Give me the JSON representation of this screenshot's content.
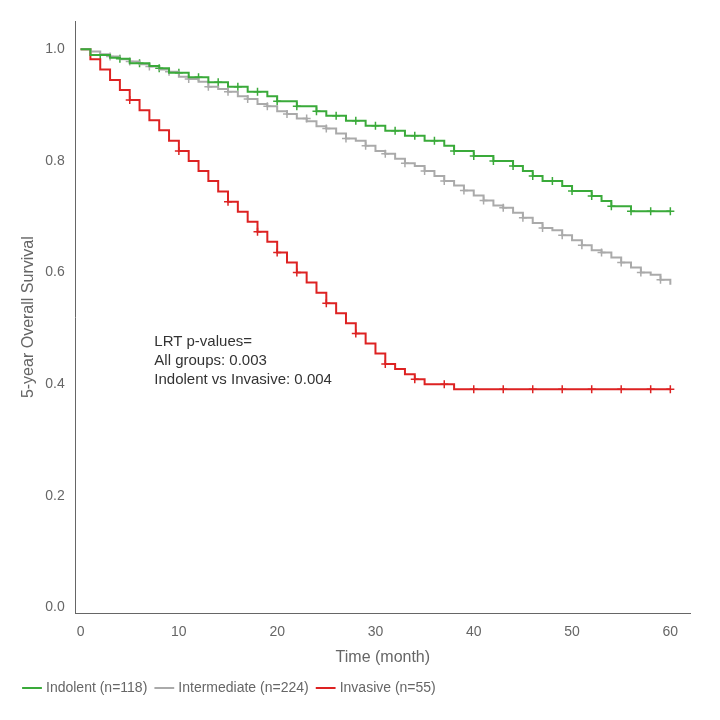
{
  "chart_data": {
    "type": "line",
    "line_style": "step",
    "xlabel": "Time (month)",
    "ylabel": "5-year Overall Survival",
    "xlim": [
      -0.5,
      62
    ],
    "ylim": [
      -0.01,
      1.05
    ],
    "xticks": [
      0,
      10,
      20,
      30,
      40,
      50,
      60
    ],
    "yticks": [
      {
        "value": 0,
        "label": "0.0"
      },
      0.2,
      0.4,
      0.6,
      0.8,
      {
        "value": 1,
        "label": "1.0"
      }
    ],
    "grid": false,
    "legend": "lower left",
    "annotations": [
      {
        "text": "LRT p-values=\nAll groups: 0.003\nIndolent vs Invasive: 0.004",
        "x": 7.5,
        "y": 0.49
      }
    ],
    "x": [
      0,
      1,
      2,
      3,
      4,
      5,
      6,
      7,
      8,
      9,
      10,
      11,
      12,
      13,
      14,
      15,
      16,
      17,
      18,
      19,
      20,
      21,
      22,
      23,
      24,
      25,
      26,
      27,
      28,
      29,
      30,
      31,
      32,
      33,
      34,
      35,
      36,
      37,
      38,
      39,
      40,
      41,
      42,
      43,
      44,
      45,
      46,
      47,
      48,
      49,
      50,
      51,
      52,
      53,
      54,
      55,
      56,
      57,
      58,
      59,
      60
    ],
    "series": [
      {
        "name": "Indolent (n=118)",
        "color": "#3aaa3a",
        "marker": "plus",
        "values": [
          1.0,
          0.99,
          0.99,
          0.985,
          0.983,
          0.975,
          0.975,
          0.97,
          0.966,
          0.958,
          0.958,
          0.95,
          0.95,
          0.941,
          0.941,
          0.933,
          0.933,
          0.924,
          0.924,
          0.916,
          0.907,
          0.907,
          0.898,
          0.898,
          0.889,
          0.881,
          0.881,
          0.872,
          0.872,
          0.863,
          0.863,
          0.854,
          0.854,
          0.845,
          0.845,
          0.836,
          0.836,
          0.827,
          0.818,
          0.818,
          0.809,
          0.809,
          0.8,
          0.8,
          0.791,
          0.782,
          0.773,
          0.764,
          0.764,
          0.755,
          0.746,
          0.746,
          0.737,
          0.728,
          0.719,
          0.719,
          0.71,
          0.71,
          0.71,
          0.71,
          0.71
        ],
        "censor_x": [
          2,
          4,
          6,
          8,
          10,
          12,
          14,
          16,
          18,
          20,
          22,
          24,
          26,
          28,
          30,
          32,
          34,
          36,
          38,
          40,
          42,
          44,
          46,
          48,
          50,
          52,
          54,
          56,
          58,
          60
        ],
        "censor_values": [
          0.99,
          0.983,
          0.975,
          0.966,
          0.958,
          0.95,
          0.941,
          0.933,
          0.924,
          0.907,
          0.898,
          0.889,
          0.881,
          0.872,
          0.863,
          0.854,
          0.845,
          0.836,
          0.818,
          0.809,
          0.8,
          0.791,
          0.773,
          0.764,
          0.746,
          0.737,
          0.719,
          0.71,
          0.71,
          0.71
        ]
      },
      {
        "name": "Intermediate (n=224)",
        "color": "#aaaaaa",
        "marker": "plus",
        "values": [
          1.0,
          0.996,
          0.991,
          0.987,
          0.982,
          0.978,
          0.973,
          0.969,
          0.964,
          0.96,
          0.951,
          0.947,
          0.942,
          0.933,
          0.929,
          0.924,
          0.916,
          0.911,
          0.902,
          0.898,
          0.889,
          0.884,
          0.876,
          0.871,
          0.862,
          0.858,
          0.849,
          0.84,
          0.836,
          0.827,
          0.818,
          0.813,
          0.804,
          0.796,
          0.791,
          0.782,
          0.773,
          0.764,
          0.756,
          0.747,
          0.738,
          0.729,
          0.72,
          0.716,
          0.707,
          0.698,
          0.689,
          0.68,
          0.676,
          0.667,
          0.658,
          0.649,
          0.64,
          0.636,
          0.627,
          0.618,
          0.609,
          0.6,
          0.596,
          0.587,
          0.578
        ],
        "censor_x": [
          3,
          5,
          7,
          9,
          11,
          13,
          15,
          17,
          19,
          21,
          23,
          25,
          27,
          29,
          31,
          33,
          35,
          37,
          39,
          41,
          43,
          45,
          47,
          49,
          51,
          53,
          55,
          57,
          59
        ],
        "censor_values": [
          0.987,
          0.978,
          0.969,
          0.96,
          0.947,
          0.933,
          0.924,
          0.911,
          0.898,
          0.884,
          0.876,
          0.858,
          0.84,
          0.827,
          0.813,
          0.796,
          0.782,
          0.764,
          0.747,
          0.729,
          0.716,
          0.698,
          0.68,
          0.667,
          0.649,
          0.636,
          0.618,
          0.6,
          0.587
        ]
      },
      {
        "name": "Invasive (n=55)",
        "color": "#dd2222",
        "marker": "plus",
        "values": [
          1.0,
          0.982,
          0.964,
          0.945,
          0.927,
          0.909,
          0.891,
          0.873,
          0.855,
          0.836,
          0.818,
          0.8,
          0.782,
          0.764,
          0.745,
          0.727,
          0.709,
          0.691,
          0.673,
          0.655,
          0.636,
          0.618,
          0.6,
          0.582,
          0.564,
          0.545,
          0.527,
          0.509,
          0.491,
          0.473,
          0.455,
          0.436,
          0.427,
          0.418,
          0.409,
          0.4,
          0.4,
          0.4,
          0.391,
          0.391,
          0.391,
          0.391,
          0.391,
          0.391,
          0.391,
          0.391,
          0.391,
          0.391,
          0.391,
          0.391,
          0.391,
          0.391,
          0.391,
          0.391,
          0.391,
          0.391,
          0.391,
          0.391,
          0.391,
          0.391,
          0.391
        ],
        "censor_x": [
          5,
          10,
          15,
          18,
          20,
          22,
          25,
          28,
          31,
          34,
          37,
          40,
          43,
          46,
          49,
          52,
          55,
          58,
          60
        ],
        "censor_values": [
          0.909,
          0.818,
          0.727,
          0.673,
          0.636,
          0.6,
          0.545,
          0.491,
          0.436,
          0.409,
          0.4,
          0.391,
          0.391,
          0.391,
          0.391,
          0.391,
          0.391,
          0.391,
          0.391
        ]
      }
    ]
  }
}
